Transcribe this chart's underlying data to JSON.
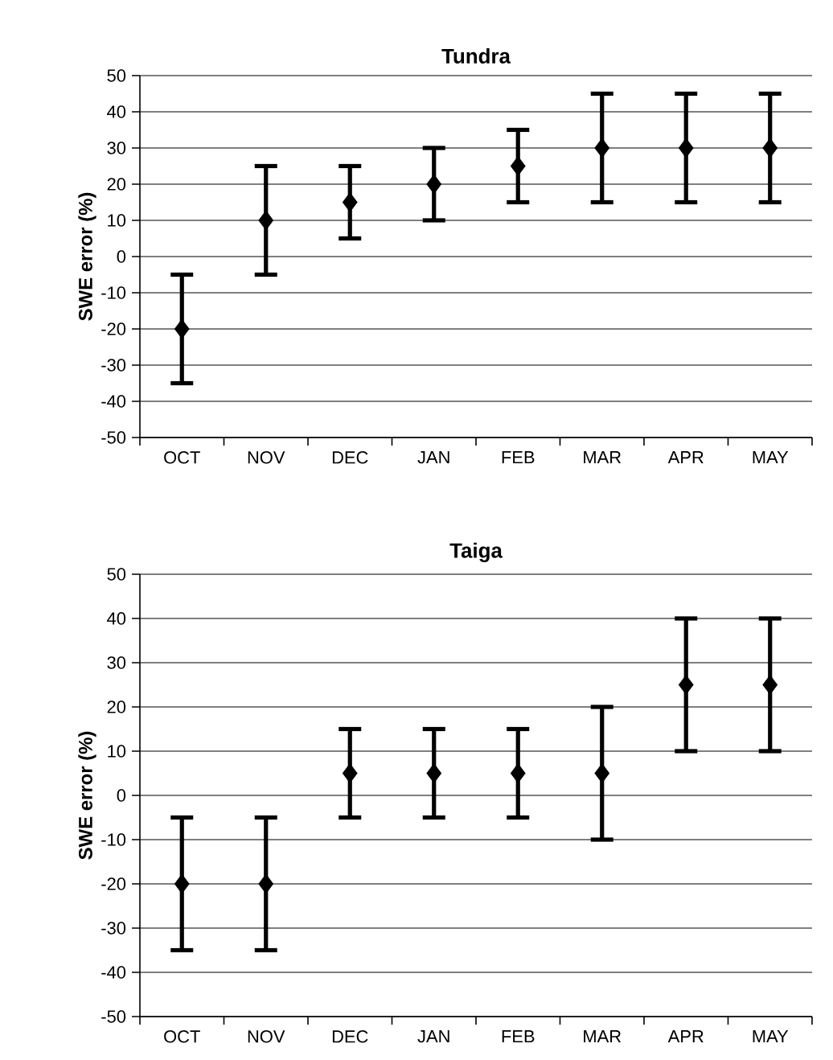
{
  "chart_data": [
    {
      "type": "scatter",
      "title": "Tundra",
      "ylabel": "SWE error (%)",
      "categories": [
        "OCT",
        "NOV",
        "DEC",
        "JAN",
        "FEB",
        "MAR",
        "APR",
        "MAY"
      ],
      "ylim": [
        -50,
        50
      ],
      "yticks": [
        -50,
        -40,
        -30,
        -20,
        -10,
        0,
        10,
        20,
        30,
        40,
        50
      ],
      "grid": "y",
      "marker": "diamond",
      "series": [
        {
          "color": "#000000",
          "values": [
            -20,
            10,
            15,
            20,
            25,
            30,
            30,
            30
          ],
          "errors": [
            [
              -35,
              -5
            ],
            [
              -5,
              25
            ],
            [
              5,
              25
            ],
            [
              10,
              30
            ],
            [
              15,
              35
            ],
            [
              15,
              45
            ],
            [
              15,
              45
            ],
            [
              15,
              45
            ]
          ]
        }
      ]
    },
    {
      "type": "scatter",
      "title": "Taiga",
      "ylabel": "SWE error (%)",
      "categories": [
        "OCT",
        "NOV",
        "DEC",
        "JAN",
        "FEB",
        "MAR",
        "APR",
        "MAY"
      ],
      "ylim": [
        -50,
        50
      ],
      "yticks": [
        -50,
        -40,
        -30,
        -20,
        -10,
        0,
        10,
        20,
        30,
        40,
        50
      ],
      "grid": "y",
      "marker": "diamond",
      "series": [
        {
          "color": "#000000",
          "values": [
            -20,
            -20,
            5,
            5,
            5,
            5,
            25,
            25
          ],
          "errors": [
            [
              -35,
              -5
            ],
            [
              -35,
              -5
            ],
            [
              -5,
              15
            ],
            [
              -5,
              15
            ],
            [
              -5,
              15
            ],
            [
              -10,
              20
            ],
            [
              10,
              40
            ],
            [
              10,
              40
            ]
          ]
        }
      ]
    }
  ]
}
